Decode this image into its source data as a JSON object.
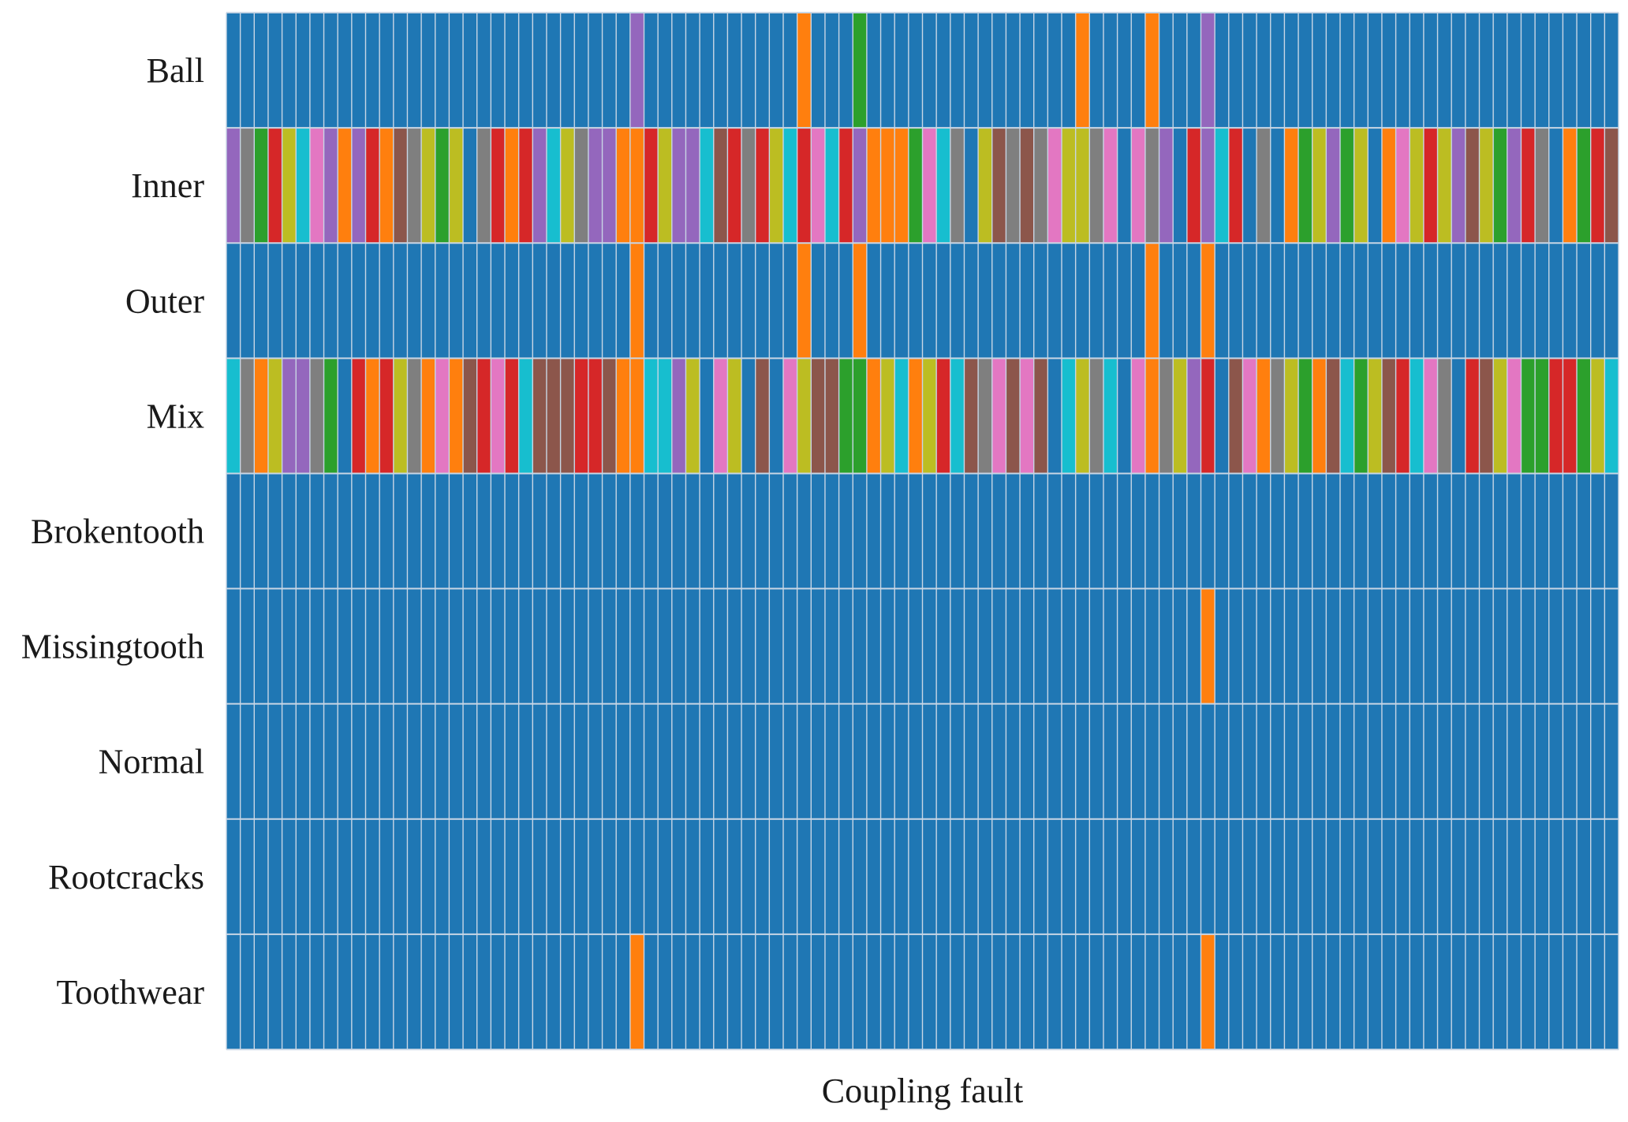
{
  "chart_data": {
    "type": "heatmap",
    "title": "",
    "xlabel": "Coupling fault",
    "ylabel": "",
    "rows": [
      "Ball",
      "Inner",
      "Outer",
      "Mix",
      "Brokentooth",
      "Missingtooth",
      "Normal",
      "Rootcracks",
      "Toothwear"
    ],
    "n_columns": 100,
    "palette": [
      "#1f77b4",
      "#ff7f0e",
      "#2ca02c",
      "#d62728",
      "#9467bd",
      "#8c564b",
      "#e377c2",
      "#7f7f7f",
      "#bcbd22",
      "#17becf"
    ],
    "grid_color": "#c8d6e5",
    "matrix": [
      [
        0,
        0,
        0,
        0,
        0,
        0,
        0,
        0,
        0,
        0,
        0,
        0,
        0,
        0,
        0,
        0,
        0,
        0,
        0,
        0,
        0,
        0,
        0,
        0,
        0,
        0,
        0,
        0,
        0,
        4,
        0,
        0,
        0,
        0,
        0,
        0,
        0,
        0,
        0,
        0,
        0,
        1,
        0,
        0,
        0,
        2,
        0,
        0,
        0,
        0,
        0,
        0,
        0,
        0,
        0,
        0,
        0,
        0,
        0,
        0,
        0,
        1,
        0,
        0,
        0,
        0,
        1,
        0,
        0,
        0,
        4,
        0,
        0,
        0,
        0,
        0,
        0,
        0,
        0,
        0,
        0,
        0,
        0,
        0,
        0,
        0,
        0,
        0,
        0,
        0,
        0,
        0,
        0,
        0,
        0,
        0,
        0,
        0,
        0,
        0
      ],
      [
        4,
        7,
        2,
        3,
        8,
        9,
        6,
        4,
        1,
        4,
        3,
        1,
        5,
        7,
        8,
        2,
        8,
        0,
        7,
        3,
        1,
        3,
        4,
        9,
        8,
        7,
        4,
        4,
        1,
        1,
        3,
        8,
        4,
        4,
        9,
        5,
        3,
        7,
        3,
        8,
        9,
        3,
        6,
        9,
        3,
        4,
        1,
        1,
        1,
        2,
        6,
        9,
        7,
        0,
        8,
        5,
        7,
        5,
        7,
        6,
        8,
        8,
        7,
        6,
        0,
        6,
        7,
        4,
        0,
        3,
        4,
        9,
        3,
        0,
        7,
        0,
        1,
        2,
        8,
        4,
        2,
        8,
        0,
        1,
        6,
        8,
        3,
        8,
        4,
        5,
        8,
        2,
        4,
        3,
        7,
        0,
        1,
        2,
        3,
        5
      ],
      [
        0,
        0,
        0,
        0,
        0,
        0,
        0,
        0,
        0,
        0,
        0,
        0,
        0,
        0,
        0,
        0,
        0,
        0,
        0,
        0,
        0,
        0,
        0,
        0,
        0,
        0,
        0,
        0,
        0,
        1,
        0,
        0,
        0,
        0,
        0,
        0,
        0,
        0,
        0,
        0,
        0,
        1,
        0,
        0,
        0,
        1,
        0,
        0,
        0,
        0,
        0,
        0,
        0,
        0,
        0,
        0,
        0,
        0,
        0,
        0,
        0,
        0,
        0,
        0,
        0,
        0,
        1,
        0,
        0,
        0,
        1,
        0,
        0,
        0,
        0,
        0,
        0,
        0,
        0,
        0,
        0,
        0,
        0,
        0,
        0,
        0,
        0,
        0,
        0,
        0,
        0,
        0,
        0,
        0,
        0,
        0,
        0,
        0,
        0,
        0
      ],
      [
        9,
        7,
        1,
        8,
        4,
        4,
        7,
        2,
        0,
        3,
        1,
        3,
        8,
        7,
        1,
        6,
        1,
        5,
        3,
        6,
        3,
        9,
        5,
        5,
        5,
        3,
        3,
        5,
        1,
        1,
        9,
        9,
        4,
        8,
        0,
        6,
        8,
        0,
        5,
        0,
        6,
        8,
        5,
        5,
        2,
        2,
        1,
        8,
        9,
        1,
        8,
        3,
        9,
        5,
        7,
        6,
        5,
        6,
        5,
        0,
        9,
        8,
        7,
        9,
        0,
        6,
        1,
        7,
        8,
        4,
        3,
        0,
        5,
        6,
        1,
        7,
        8,
        2,
        1,
        5,
        9,
        2,
        8,
        5,
        3,
        9,
        6,
        7,
        0,
        3,
        5,
        8,
        6,
        2,
        2,
        3,
        3,
        2,
        8,
        9
      ],
      [
        0,
        0,
        0,
        0,
        0,
        0,
        0,
        0,
        0,
        0,
        0,
        0,
        0,
        0,
        0,
        0,
        0,
        0,
        0,
        0,
        0,
        0,
        0,
        0,
        0,
        0,
        0,
        0,
        0,
        0,
        0,
        0,
        0,
        0,
        0,
        0,
        0,
        0,
        0,
        0,
        0,
        0,
        0,
        0,
        0,
        0,
        0,
        0,
        0,
        0,
        0,
        0,
        0,
        0,
        0,
        0,
        0,
        0,
        0,
        0,
        0,
        0,
        0,
        0,
        0,
        0,
        0,
        0,
        0,
        0,
        0,
        0,
        0,
        0,
        0,
        0,
        0,
        0,
        0,
        0,
        0,
        0,
        0,
        0,
        0,
        0,
        0,
        0,
        0,
        0,
        0,
        0,
        0,
        0,
        0,
        0,
        0,
        0,
        0,
        0
      ],
      [
        0,
        0,
        0,
        0,
        0,
        0,
        0,
        0,
        0,
        0,
        0,
        0,
        0,
        0,
        0,
        0,
        0,
        0,
        0,
        0,
        0,
        0,
        0,
        0,
        0,
        0,
        0,
        0,
        0,
        0,
        0,
        0,
        0,
        0,
        0,
        0,
        0,
        0,
        0,
        0,
        0,
        0,
        0,
        0,
        0,
        0,
        0,
        0,
        0,
        0,
        0,
        0,
        0,
        0,
        0,
        0,
        0,
        0,
        0,
        0,
        0,
        0,
        0,
        0,
        0,
        0,
        0,
        0,
        0,
        0,
        1,
        0,
        0,
        0,
        0,
        0,
        0,
        0,
        0,
        0,
        0,
        0,
        0,
        0,
        0,
        0,
        0,
        0,
        0,
        0,
        0,
        0,
        0,
        0,
        0,
        0,
        0,
        0,
        0,
        0
      ],
      [
        0,
        0,
        0,
        0,
        0,
        0,
        0,
        0,
        0,
        0,
        0,
        0,
        0,
        0,
        0,
        0,
        0,
        0,
        0,
        0,
        0,
        0,
        0,
        0,
        0,
        0,
        0,
        0,
        0,
        0,
        0,
        0,
        0,
        0,
        0,
        0,
        0,
        0,
        0,
        0,
        0,
        0,
        0,
        0,
        0,
        0,
        0,
        0,
        0,
        0,
        0,
        0,
        0,
        0,
        0,
        0,
        0,
        0,
        0,
        0,
        0,
        0,
        0,
        0,
        0,
        0,
        0,
        0,
        0,
        0,
        0,
        0,
        0,
        0,
        0,
        0,
        0,
        0,
        0,
        0,
        0,
        0,
        0,
        0,
        0,
        0,
        0,
        0,
        0,
        0,
        0,
        0,
        0,
        0,
        0,
        0,
        0,
        0,
        0,
        0
      ],
      [
        0,
        0,
        0,
        0,
        0,
        0,
        0,
        0,
        0,
        0,
        0,
        0,
        0,
        0,
        0,
        0,
        0,
        0,
        0,
        0,
        0,
        0,
        0,
        0,
        0,
        0,
        0,
        0,
        0,
        0,
        0,
        0,
        0,
        0,
        0,
        0,
        0,
        0,
        0,
        0,
        0,
        0,
        0,
        0,
        0,
        0,
        0,
        0,
        0,
        0,
        0,
        0,
        0,
        0,
        0,
        0,
        0,
        0,
        0,
        0,
        0,
        0,
        0,
        0,
        0,
        0,
        0,
        0,
        0,
        0,
        0,
        0,
        0,
        0,
        0,
        0,
        0,
        0,
        0,
        0,
        0,
        0,
        0,
        0,
        0,
        0,
        0,
        0,
        0,
        0,
        0,
        0,
        0,
        0,
        0,
        0,
        0,
        0,
        0,
        0
      ],
      [
        0,
        0,
        0,
        0,
        0,
        0,
        0,
        0,
        0,
        0,
        0,
        0,
        0,
        0,
        0,
        0,
        0,
        0,
        0,
        0,
        0,
        0,
        0,
        0,
        0,
        0,
        0,
        0,
        0,
        1,
        0,
        0,
        0,
        0,
        0,
        0,
        0,
        0,
        0,
        0,
        0,
        0,
        0,
        0,
        0,
        0,
        0,
        0,
        0,
        0,
        0,
        0,
        0,
        0,
        0,
        0,
        0,
        0,
        0,
        0,
        0,
        0,
        0,
        0,
        0,
        0,
        0,
        0,
        0,
        0,
        1,
        0,
        0,
        0,
        0,
        0,
        0,
        0,
        0,
        0,
        0,
        0,
        0,
        0,
        0,
        0,
        0,
        0,
        0,
        0,
        0,
        0,
        0,
        0,
        0,
        0,
        0,
        0,
        0,
        0
      ]
    ]
  }
}
